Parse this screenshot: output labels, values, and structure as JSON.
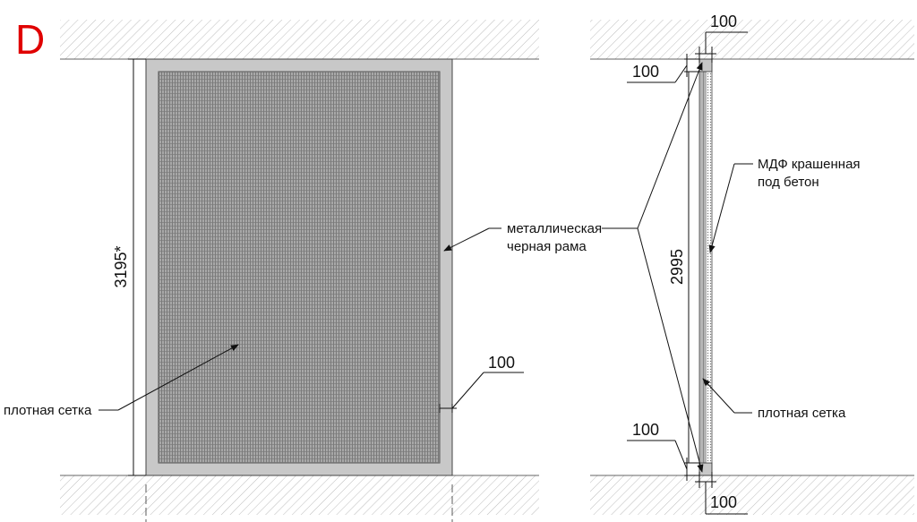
{
  "view_marker": {
    "text": "D",
    "color": "#e00000"
  },
  "front_view": {
    "height_dim": "3195*",
    "frame_label_line1": "металлическая",
    "frame_label_line2": "черная рама",
    "frame_width_dim": "100",
    "mesh_label": "плотная сетка"
  },
  "side_view": {
    "top_outer_dim": "100",
    "top_inner_dim": "100",
    "height_dim": "2995",
    "mdf_label_line1": "МДФ крашенная",
    "mdf_label_line2": "под бетон",
    "mesh_label": "плотная сетка",
    "bottom_inner_dim": "100",
    "bottom_outer_dim": "100"
  },
  "colors": {
    "frame": "#c8c8c8",
    "mesh": "#8f8f8f",
    "hatch": "#bdbdbd",
    "line": "#111111"
  }
}
